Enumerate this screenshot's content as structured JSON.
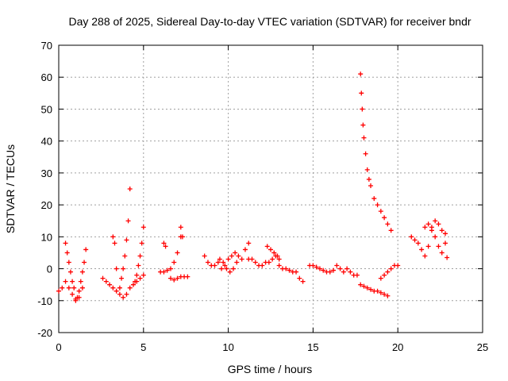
{
  "chart_data": {
    "type": "scatter",
    "title": "Day 288 of 2025, Sidereal Day-to-day VTEC variation (SDTVAR) for receiver bndr",
    "xlabel": "GPS time / hours",
    "ylabel": "SDTVAR / TECUs",
    "xlim": [
      0,
      25
    ],
    "ylim": [
      -20,
      70
    ],
    "xticks": [
      0,
      5,
      10,
      15,
      20,
      25
    ],
    "yticks": [
      -20,
      -10,
      0,
      10,
      20,
      30,
      40,
      50,
      60,
      70
    ],
    "grid": true,
    "marker": "+",
    "marker_color": "#ff0000",
    "series": [
      {
        "name": "seg1",
        "x": [
          0.0,
          0.2,
          0.4,
          0.6,
          0.8,
          1.0,
          1.2,
          1.4
        ],
        "y": [
          -7,
          -6,
          -4,
          -6,
          -8,
          -9.5,
          -9,
          -6
        ]
      },
      {
        "name": "seg2",
        "x": [
          0.4,
          0.5,
          0.6,
          0.7,
          0.8,
          0.9
        ],
        "y": [
          8,
          5,
          2,
          -1,
          -4,
          -6
        ]
      },
      {
        "name": "seg3",
        "x": [
          1.0,
          1.1,
          1.2,
          1.3,
          1.4,
          1.5,
          1.6
        ],
        "y": [
          -10,
          -9,
          -7,
          -4,
          -1,
          2,
          6
        ]
      },
      {
        "name": "seg4",
        "x": [
          2.6,
          2.8,
          3.0,
          3.2,
          3.4,
          3.6,
          3.8,
          4.0,
          4.2,
          4.4,
          4.6,
          4.8,
          5.0
        ],
        "y": [
          -3,
          -4,
          -5,
          -6,
          -7,
          -8,
          -9,
          -8,
          -6,
          -5,
          -4,
          -3,
          -2
        ]
      },
      {
        "name": "seg5",
        "x": [
          3.2,
          3.3,
          3.4
        ],
        "y": [
          10,
          8,
          0
        ]
      },
      {
        "name": "seg6",
        "x": [
          3.6,
          3.7,
          3.8,
          3.9,
          4.0,
          4.1,
          4.2
        ],
        "y": [
          -6,
          -3,
          0,
          4,
          9,
          15,
          25
        ]
      },
      {
        "name": "seg7",
        "x": [
          4.5,
          4.6,
          4.7,
          4.8,
          4.9,
          5.0
        ],
        "y": [
          -4,
          -2,
          1,
          4,
          8,
          13
        ]
      },
      {
        "name": "seg8",
        "x": [
          6.0,
          6.2,
          6.4,
          6.6,
          6.8,
          7.0,
          7.2
        ],
        "y": [
          -1,
          -1,
          -0.5,
          0,
          2,
          5,
          10
        ]
      },
      {
        "name": "seg9",
        "x": [
          6.2,
          6.3
        ],
        "y": [
          8,
          7
        ]
      },
      {
        "name": "seg10",
        "x": [
          7.2,
          7.3
        ],
        "y": [
          13,
          10
        ]
      },
      {
        "name": "seg11",
        "x": [
          6.6,
          6.8,
          7.0,
          7.2,
          7.4,
          7.6
        ],
        "y": [
          -3,
          -3.5,
          -3,
          -2.5,
          -2.5,
          -2.5
        ]
      },
      {
        "name": "seg12",
        "x": [
          8.6,
          8.8,
          9.0,
          9.2,
          9.4,
          9.6,
          9.8,
          10.0,
          10.2,
          10.4,
          10.6
        ],
        "y": [
          4,
          2,
          1,
          1,
          2,
          0,
          1,
          3,
          4,
          5,
          4
        ]
      },
      {
        "name": "seg13",
        "x": [
          9.5,
          9.7,
          9.9,
          10.1,
          10.3,
          10.5
        ],
        "y": [
          3,
          2,
          0,
          -1,
          0,
          2
        ]
      },
      {
        "name": "seg14",
        "x": [
          10.8,
          11.0,
          11.2
        ],
        "y": [
          3,
          6,
          8
        ]
      },
      {
        "name": "seg15",
        "x": [
          11.2,
          11.4,
          11.6,
          11.8,
          12.0,
          12.2,
          12.4,
          12.6,
          12.8,
          13.0
        ],
        "y": [
          3,
          3,
          2,
          1,
          1,
          2,
          2,
          3,
          4,
          3
        ]
      },
      {
        "name": "seg16",
        "x": [
          12.3,
          12.5,
          12.7,
          12.9
        ],
        "y": [
          7,
          6,
          5,
          4
        ]
      },
      {
        "name": "seg17",
        "x": [
          13.0,
          13.2,
          13.4,
          13.6,
          13.8,
          14.0,
          14.2,
          14.4
        ],
        "y": [
          1,
          0,
          0,
          -0.5,
          -1,
          -1,
          -3,
          -4
        ]
      },
      {
        "name": "seg18",
        "x": [
          14.8,
          15.0,
          15.2,
          15.4,
          15.6,
          15.8,
          16.0,
          16.2,
          16.4,
          16.6,
          16.8,
          17.0,
          17.2,
          17.4,
          17.6
        ],
        "y": [
          1,
          1,
          0.5,
          0,
          -0.5,
          -1,
          -1,
          -0.5,
          1,
          0,
          -1,
          0,
          -1,
          -2,
          -2
        ]
      },
      {
        "name": "seg19",
        "x": [
          17.8,
          18.0,
          18.2,
          18.4,
          18.6,
          18.8,
          19.0,
          19.2,
          19.4
        ],
        "y": [
          -5,
          -5.5,
          -6,
          -6.5,
          -7,
          -7,
          -7.5,
          -8,
          -8.5
        ]
      },
      {
        "name": "seg20",
        "x": [
          17.8,
          17.85,
          17.9,
          17.95,
          18.0,
          18.1,
          18.2,
          18.3,
          18.4,
          18.6,
          18.8,
          19.0,
          19.2,
          19.4,
          19.6
        ],
        "y": [
          61,
          55,
          50,
          45,
          41,
          36,
          31,
          28,
          26,
          22,
          20,
          18,
          16,
          14,
          12
        ]
      },
      {
        "name": "seg21",
        "x": [
          19.0,
          19.2,
          19.4,
          19.6,
          19.8,
          20.0
        ],
        "y": [
          -3,
          -2,
          -1,
          0,
          1,
          1
        ]
      },
      {
        "name": "seg22",
        "x": [
          20.8,
          21.0,
          21.2,
          21.4,
          21.6,
          21.8,
          22.0,
          22.2,
          22.4,
          22.6,
          22.8
        ],
        "y": [
          10,
          9,
          8,
          6,
          4,
          7,
          12,
          15,
          14,
          12,
          11
        ]
      },
      {
        "name": "seg23",
        "x": [
          21.6,
          21.8,
          22.0,
          22.2,
          22.4,
          22.6,
          22.8
        ],
        "y": [
          13,
          14,
          13,
          10,
          7,
          5,
          8
        ]
      },
      {
        "name": "seg24",
        "x": [
          22.9
        ],
        "y": [
          3.5
        ]
      }
    ]
  }
}
